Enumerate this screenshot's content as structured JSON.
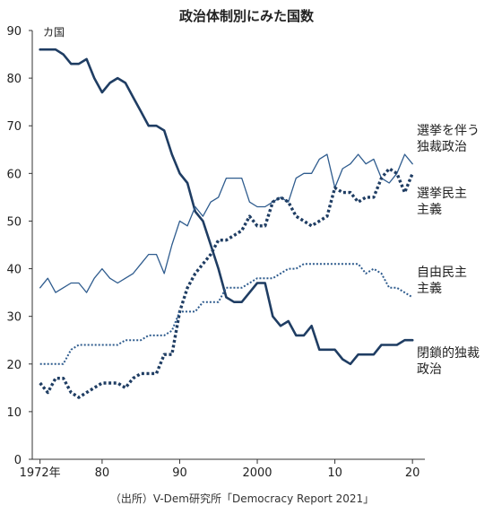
{
  "chart_data": {
    "type": "line",
    "title": "政治体制別にみた国数",
    "unit_label": "カ国",
    "source": "（出所）V-Dem研究所「Democracy Report 2021」",
    "x_tick_labels": [
      "1972年",
      "80",
      "90",
      "2000",
      "10",
      "20"
    ],
    "x_tick_values": [
      1972,
      1980,
      1990,
      2000,
      2010,
      2020
    ],
    "xlim": [
      1971,
      2021.6
    ],
    "y_tick_labels": [
      "0",
      "10",
      "20",
      "30",
      "40",
      "50",
      "60",
      "70",
      "80",
      "90"
    ],
    "ylim": [
      0,
      90
    ],
    "grid": false,
    "x": [
      1972,
      1973,
      1974,
      1975,
      1976,
      1977,
      1978,
      1979,
      1980,
      1981,
      1982,
      1983,
      1984,
      1985,
      1986,
      1987,
      1988,
      1989,
      1990,
      1991,
      1992,
      1993,
      1994,
      1995,
      1996,
      1997,
      1998,
      1999,
      2000,
      2001,
      2002,
      2003,
      2004,
      2005,
      2006,
      2007,
      2008,
      2009,
      2010,
      2011,
      2012,
      2013,
      2014,
      2015,
      2016,
      2017,
      2018,
      2019,
      2020
    ],
    "series": [
      {
        "name_lines": [
          "閉鎖的独裁",
          "政治"
        ],
        "style": "thick",
        "color": "#1f3d63",
        "values": [
          86,
          86,
          86,
          85,
          83,
          83,
          84,
          80,
          77,
          79,
          80,
          79,
          76,
          73,
          70,
          70,
          69,
          64,
          60,
          58,
          52,
          50,
          45,
          40,
          34,
          33,
          33,
          35,
          37,
          37,
          30,
          28,
          29,
          26,
          26,
          28,
          23,
          23,
          23,
          21,
          20,
          22,
          22,
          22,
          24,
          24,
          24,
          25,
          25
        ]
      },
      {
        "name_lines": [
          "選挙を伴う",
          "独裁政治"
        ],
        "style": "thin",
        "color": "#2f5c8e",
        "values": [
          36,
          38,
          35,
          36,
          37,
          37,
          35,
          38,
          40,
          38,
          37,
          38,
          39,
          41,
          43,
          43,
          39,
          45,
          50,
          49,
          53,
          51,
          54,
          55,
          59,
          59,
          59,
          54,
          53,
          53,
          54,
          55,
          54,
          59,
          60,
          60,
          63,
          64,
          57,
          61,
          62,
          64,
          62,
          63,
          59,
          58,
          60,
          64,
          62
        ]
      },
      {
        "name_lines": [
          "選挙民主",
          "主義"
        ],
        "style": "thick-dotted",
        "color": "#1f3d63",
        "values": [
          16,
          14,
          17,
          17,
          14,
          13,
          14,
          15,
          16,
          16,
          16,
          15,
          17,
          18,
          18,
          18,
          22,
          22,
          31,
          36,
          39,
          41,
          43,
          46,
          46,
          47,
          48,
          51,
          49,
          49,
          54,
          55,
          54,
          51,
          50,
          49,
          50,
          51,
          57,
          56,
          56,
          54,
          55,
          55,
          59,
          61,
          60,
          56,
          60
        ]
      },
      {
        "name_lines": [
          "自由民主",
          "主義"
        ],
        "style": "thin-dotted",
        "color": "#2f5c8e",
        "values": [
          20,
          20,
          20,
          20,
          23,
          24,
          24,
          24,
          24,
          24,
          24,
          25,
          25,
          25,
          26,
          26,
          26,
          27,
          31,
          31,
          31,
          33,
          33,
          33,
          36,
          36,
          36,
          37,
          38,
          38,
          38,
          39,
          40,
          40,
          41,
          41,
          41,
          41,
          41,
          41,
          41,
          41,
          39,
          40,
          39,
          36,
          36,
          35,
          34
        ]
      }
    ]
  }
}
